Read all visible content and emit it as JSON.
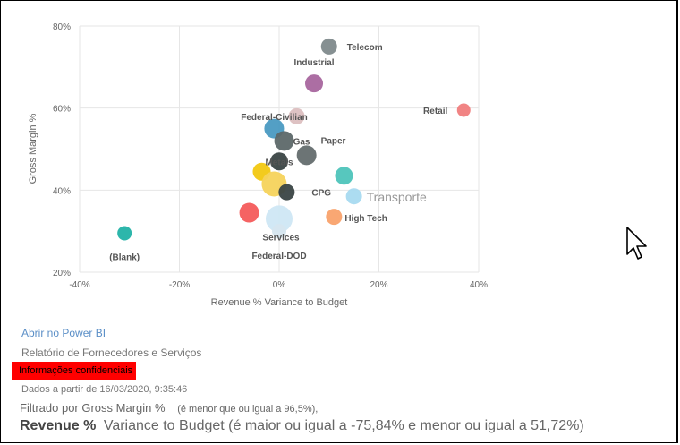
{
  "chart_data": {
    "type": "scatter",
    "xlabel": "Revenue % Variance to Budget",
    "ylabel": "Gross Margin %",
    "xlim": [
      -40,
      40
    ],
    "ylim": [
      20,
      80
    ],
    "x_ticks": [
      "-40%",
      "-20%",
      "0%",
      "20%",
      "40%"
    ],
    "y_ticks": [
      "20%",
      "40%",
      "60%",
      "80%"
    ],
    "grid": true,
    "points": [
      {
        "label": "Telecom",
        "x": 10,
        "y": 75,
        "color": "#7f8a8c",
        "r": 9
      },
      {
        "label": "Industrial",
        "x": 7,
        "y": 66,
        "color": "#a8669e",
        "r": 10
      },
      {
        "label": "Retail",
        "x": 37,
        "y": 59.5,
        "color": "#f07d7d",
        "r": 7.5
      },
      {
        "label": "Federal-Civilian",
        "x": 3.5,
        "y": 58,
        "color": "#dcbfc0",
        "r": 9
      },
      {
        "label": "",
        "x": -1,
        "y": 55,
        "color": "#4a9ac2",
        "r": 11
      },
      {
        "label": "Gas",
        "x": 1,
        "y": 52,
        "color": "#5d6869",
        "r": 11
      },
      {
        "label": "Paper",
        "x": 5.5,
        "y": 48.5,
        "color": "#646d6e",
        "r": 11
      },
      {
        "label": "Metals",
        "x": 0,
        "y": 47,
        "color": "#3a4445",
        "r": 10
      },
      {
        "label": "",
        "x": 13,
        "y": 43.5,
        "color": "#4ec4bb",
        "r": 10
      },
      {
        "label": "",
        "x": -3.5,
        "y": 44.5,
        "color": "#f2c811",
        "r": 10
      },
      {
        "label": "",
        "x": -1,
        "y": 41.5,
        "color": "#f5d35c",
        "r": 14
      },
      {
        "label": "CPG",
        "x": 1.5,
        "y": 39.5,
        "color": "#3a4445",
        "r": 9
      },
      {
        "label": "Transporte",
        "x": 15,
        "y": 38.5,
        "color": "#a8daf0",
        "r": 9
      },
      {
        "label": "",
        "x": -6,
        "y": 34.5,
        "color": "#f45b5b",
        "r": 11
      },
      {
        "label": "High Tech",
        "x": 11,
        "y": 33.5,
        "color": "#f9a26c",
        "r": 9
      },
      {
        "label": "Services",
        "x": 0,
        "y": 33,
        "color": "#cfe7f4",
        "r": 15
      },
      {
        "label": "Federal-DOD",
        "x": 0,
        "y": 30,
        "color": "#d6e6ef",
        "r": 8
      },
      {
        "label": "(Blank)",
        "x": -31,
        "y": 29.5,
        "color": "#22b2a6",
        "r": 8
      }
    ]
  },
  "info": {
    "link": "Abrir no Power BI",
    "report": "Relatório de Fornecedores e Serviços",
    "confidential": "Informações confidenciais",
    "date": "Dados a partir de 16/03/2020, 9:35:46",
    "filter1_field": "Filtrado por Gross Margin %",
    "filter1_cond": "(é menor que ou igual a 96,5%),",
    "filter2_field": "Revenue %",
    "filter2_cond": "Variance to Budget (é maior ou igual a -75,84% e menor ou igual a 51,72%)"
  }
}
